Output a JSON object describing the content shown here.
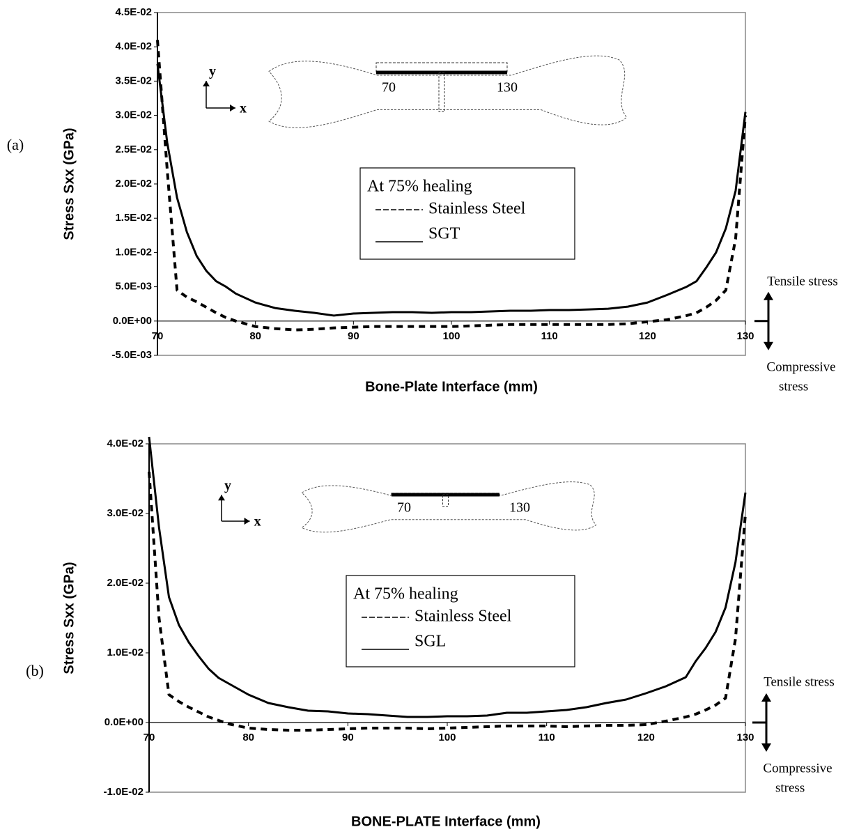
{
  "chart_data": [
    {
      "type": "line",
      "panel_label": "(a)",
      "ylabel": "Stress Sxx (GPa)",
      "xlabel": "Bone-Plate Interface (mm)",
      "x": [
        70,
        71,
        72,
        73,
        74,
        75,
        76,
        77,
        78,
        80,
        82,
        84,
        86,
        88,
        90,
        92,
        94,
        96,
        98,
        100,
        102,
        104,
        106,
        108,
        110,
        112,
        114,
        116,
        118,
        120,
        122,
        124,
        125,
        126,
        127,
        128,
        129,
        130
      ],
      "xlim": [
        70,
        130
      ],
      "xticks": [
        70,
        80,
        90,
        100,
        110,
        120,
        130
      ],
      "ylim": [
        -0.005,
        0.045
      ],
      "yticks": [
        {
          "value": -0.005,
          "label": "-5.0E-03"
        },
        {
          "value": 0,
          "label": "0.0E+00"
        },
        {
          "value": 0.005,
          "label": "5.0E-03"
        },
        {
          "value": 0.01,
          "label": "1.0E-02"
        },
        {
          "value": 0.015,
          "label": "1.5E-02"
        },
        {
          "value": 0.02,
          "label": "2.0E-02"
        },
        {
          "value": 0.025,
          "label": "2.5E-02"
        },
        {
          "value": 0.03,
          "label": "3.0E-02"
        },
        {
          "value": 0.035,
          "label": "3.5E-02"
        },
        {
          "value": 0.04,
          "label": "4.0E-02"
        },
        {
          "value": 0.045,
          "label": "4.5E-02"
        }
      ],
      "legend_title": "At 75% healing",
      "series": [
        {
          "name": "Stainless Steel",
          "color": "#000000",
          "dash": true,
          "values": [
            0.041,
            0.022,
            0.0045,
            0.0035,
            0.0028,
            0.002,
            0.0012,
            0.0005,
            0.0,
            -0.0008,
            -0.0011,
            -0.0013,
            -0.0012,
            -0.001,
            -0.0009,
            -0.0008,
            -0.0008,
            -0.0008,
            -0.0008,
            -0.0008,
            -0.0007,
            -0.0006,
            -0.0005,
            -0.0005,
            -0.0005,
            -0.0005,
            -0.0005,
            -0.0005,
            -0.0004,
            -0.0001,
            0.0002,
            0.0008,
            0.0012,
            0.002,
            0.003,
            0.0045,
            0.012,
            0.03
          ]
        },
        {
          "name": "SGT",
          "color": "#000000",
          "dash": false,
          "values": [
            0.0375,
            0.026,
            0.018,
            0.013,
            0.0095,
            0.0073,
            0.0058,
            0.005,
            0.004,
            0.0027,
            0.0019,
            0.0015,
            0.0012,
            0.0008,
            0.0011,
            0.0012,
            0.0013,
            0.0013,
            0.0012,
            0.0013,
            0.0013,
            0.0014,
            0.0015,
            0.0015,
            0.0016,
            0.0016,
            0.0017,
            0.0018,
            0.0021,
            0.0027,
            0.0038,
            0.005,
            0.0058,
            0.0078,
            0.01,
            0.0135,
            0.019,
            0.0305
          ]
        }
      ],
      "annotations": {
        "tensile": "Tensile stress",
        "compressive": [
          "Compressive",
          "stress"
        ]
      },
      "inset": {
        "axes": [
          "y",
          "x"
        ],
        "plate_ends": [
          "70",
          "130"
        ]
      }
    },
    {
      "type": "line",
      "panel_label": "(b)",
      "ylabel": "Stress Sxx (GPa)",
      "xlabel": "BONE-PLATE Interface (mm)",
      "x": [
        70,
        71,
        72,
        73,
        74,
        75,
        76,
        77,
        78,
        80,
        82,
        84,
        86,
        88,
        90,
        92,
        94,
        96,
        98,
        100,
        102,
        104,
        106,
        108,
        110,
        112,
        114,
        116,
        118,
        120,
        122,
        124,
        125,
        126,
        127,
        128,
        129,
        130
      ],
      "xlim": [
        70,
        130
      ],
      "xticks": [
        70,
        80,
        90,
        100,
        110,
        120,
        130
      ],
      "ylim": [
        -0.01,
        0.04
      ],
      "yticks": [
        {
          "value": -0.01,
          "label": "-1.0E-02"
        },
        {
          "value": 0,
          "label": "0.0E+00"
        },
        {
          "value": 0.01,
          "label": "1.0E-02"
        },
        {
          "value": 0.02,
          "label": "2.0E-02"
        },
        {
          "value": 0.03,
          "label": "3.0E-02"
        },
        {
          "value": 0.04,
          "label": "4.0E-02"
        }
      ],
      "legend_title": "At 75% healing",
      "series": [
        {
          "name": "Stainless Steel",
          "color": "#000000",
          "dash": true,
          "values": [
            0.036,
            0.015,
            0.004,
            0.003,
            0.0022,
            0.0015,
            0.0008,
            0.0003,
            -0.0002,
            -0.0008,
            -0.001,
            -0.0011,
            -0.0011,
            -0.001,
            -0.0009,
            -0.0008,
            -0.0008,
            -0.0008,
            -0.0009,
            -0.0008,
            -0.0007,
            -0.0006,
            -0.0005,
            -0.0005,
            -0.0005,
            -0.0006,
            -0.0005,
            -0.0004,
            -0.0004,
            -0.0003,
            0.0002,
            0.0008,
            0.0012,
            0.0018,
            0.0025,
            0.0035,
            0.012,
            0.03
          ]
        },
        {
          "name": "SGL",
          "color": "#000000",
          "dash": false,
          "values": [
            0.041,
            0.028,
            0.018,
            0.014,
            0.0115,
            0.0095,
            0.0077,
            0.0064,
            0.0056,
            0.004,
            0.0028,
            0.0022,
            0.0017,
            0.0016,
            0.0013,
            0.0012,
            0.001,
            0.0008,
            0.0008,
            0.0009,
            0.0009,
            0.001,
            0.0014,
            0.0014,
            0.0016,
            0.0018,
            0.0022,
            0.0028,
            0.0033,
            0.0042,
            0.0052,
            0.0065,
            0.0088,
            0.0107,
            0.013,
            0.0165,
            0.023,
            0.033
          ]
        }
      ],
      "annotations": {
        "tensile": "Tensile stress",
        "compressive": [
          "Compressive",
          "stress"
        ]
      },
      "inset": {
        "axes": [
          "y",
          "x"
        ],
        "plate_ends": [
          "70",
          "130"
        ]
      }
    }
  ]
}
